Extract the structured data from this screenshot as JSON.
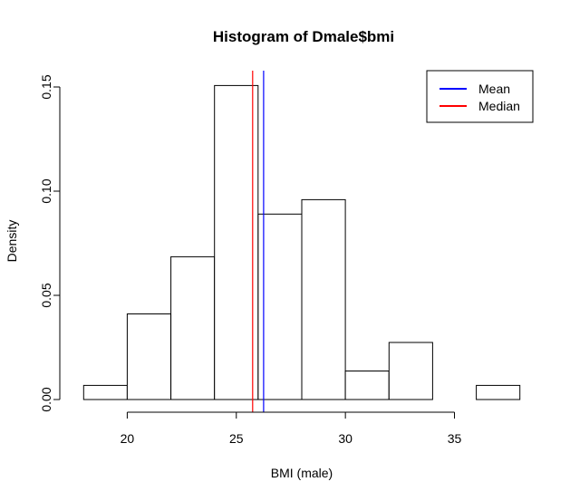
{
  "chart_data": {
    "type": "bar",
    "title": "Histogram of Dmale$bmi",
    "xlabel": "BMI (male)",
    "ylabel": "Density",
    "xlim": [
      17.2,
      38.8
    ],
    "ylim": [
      0,
      0.16
    ],
    "x_ticks": [
      20,
      25,
      30,
      35
    ],
    "x_tick_labels": [
      "20",
      "25",
      "30",
      "35"
    ],
    "y_ticks": [
      0.0,
      0.05,
      0.1,
      0.15
    ],
    "y_tick_labels": [
      "0.00",
      "0.05",
      "0.10",
      "0.15"
    ],
    "bin_edges": [
      18,
      20,
      22,
      24,
      26,
      28,
      30,
      32,
      34,
      36,
      38
    ],
    "values": [
      0.0068,
      0.0411,
      0.0685,
      0.1507,
      0.089,
      0.0959,
      0.0137,
      0.0274,
      0,
      0.0068
    ],
    "grid": false,
    "bar_fill": "#ffffff",
    "bar_stroke": "#000000",
    "vlines": [
      {
        "name": "Mean",
        "x": 26.25,
        "color": "#0000ff"
      },
      {
        "name": "Median",
        "x": 25.75,
        "color": "#ff0000"
      }
    ],
    "legend": {
      "placement": "top-right",
      "entries": [
        {
          "label": "Mean",
          "color": "#0000ff"
        },
        {
          "label": "Median",
          "color": "#ff0000"
        }
      ]
    }
  }
}
